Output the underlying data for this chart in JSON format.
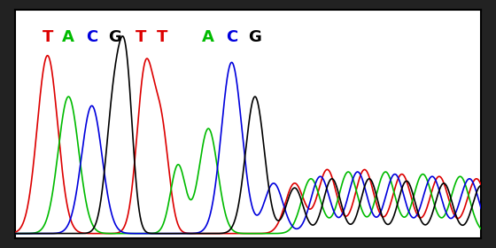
{
  "sequence": [
    "T",
    "A",
    "C",
    "G",
    "T",
    "T",
    "A",
    "C",
    "G"
  ],
  "base_colors": {
    "T": "#dd0000",
    "A": "#00bb00",
    "C": "#0000dd",
    "G": "#000000"
  },
  "bg_color": "#ffffff",
  "border_color": "#000000",
  "label_fontsize": 13,
  "outer_bg": "#222222",
  "figsize": [
    5.6,
    2.8
  ],
  "dpi": 100
}
